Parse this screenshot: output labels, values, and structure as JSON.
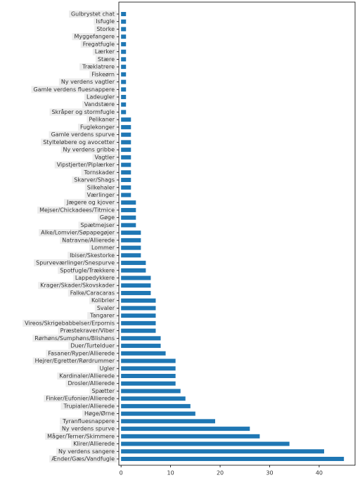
{
  "chart_data": {
    "type": "barh",
    "color": "#1f77b4",
    "categories": [
      "Gulbrystet chat",
      "Isfugle",
      "Storke",
      "Myggefangere",
      "Fregatfugle",
      "Lærker",
      "Stære",
      "Træklatrere",
      "Fiskeørn",
      "Ny verdens vagtler",
      "Gamle verdens fluesnappere",
      "Ladeugler",
      "Vandstære",
      "Skråper og stormfugle",
      "Pelikaner",
      "Fuglekonger",
      "Gamle verdens spurve",
      "Stylteløbere og avocetter",
      "Ny verdens gribbe",
      "Vagtler",
      "Vipstjerter/Piplærker",
      "Tornskader",
      "Skarver/Shags",
      "Silkehaler",
      "Værlinger",
      "Jægere og kjover",
      "Mejser/Chickadees/Titmice",
      "Gøge",
      "Spætmejser",
      "Alke/Lomvier/Søpapegøjer",
      "Natravne/Allierede",
      "Lommer",
      "Ibiser/Skestorke",
      "Spurveværlinger/Snespurve",
      "Spotfugle/Trækkere",
      "Lappedykkere",
      "Krager/Skader/Skovskader",
      "Falke/Caracaras",
      "Kolibrier",
      "Svaler",
      "Tangarer",
      "Vireos/Skrigebabbelser/Erpornis",
      "Præstekraver/Viber",
      "Rørhøns/Sumphøns/Blishøns",
      "Duer/Turtelduer",
      "Fasaner/Ryper/Allierede",
      "Hejrer/Egretter/Rørdrummer",
      "Ugler",
      "Kardinaler/Allierede",
      "Drosler/Allierede",
      "Spætter",
      "Finker/Eufonier/Allierede",
      "Trupialer/Allierede",
      "Høge/Ørne",
      "Tyranfluesnappere",
      "Ny verdens spurve",
      "Måger/Terner/Skimmere",
      "Klirer/Allierede",
      "Ny verdens sangere",
      "Ænder/Gæs/Vandfugle"
    ],
    "values": [
      1,
      1,
      1,
      1,
      1,
      1,
      1,
      1,
      1,
      1,
      1,
      1,
      1,
      1,
      2,
      2,
      2,
      2,
      2,
      2,
      2,
      2,
      2,
      2,
      2,
      3,
      3,
      3,
      3,
      4,
      4,
      4,
      4,
      5,
      5,
      6,
      6,
      6,
      7,
      7,
      7,
      7,
      7,
      8,
      8,
      9,
      11,
      11,
      11,
      11,
      12,
      13,
      14,
      15,
      19,
      26,
      28,
      34,
      41,
      45
    ],
    "xlim": [
      -0.45,
      47.25
    ],
    "xticks": [
      0,
      10,
      20,
      30,
      40
    ]
  }
}
